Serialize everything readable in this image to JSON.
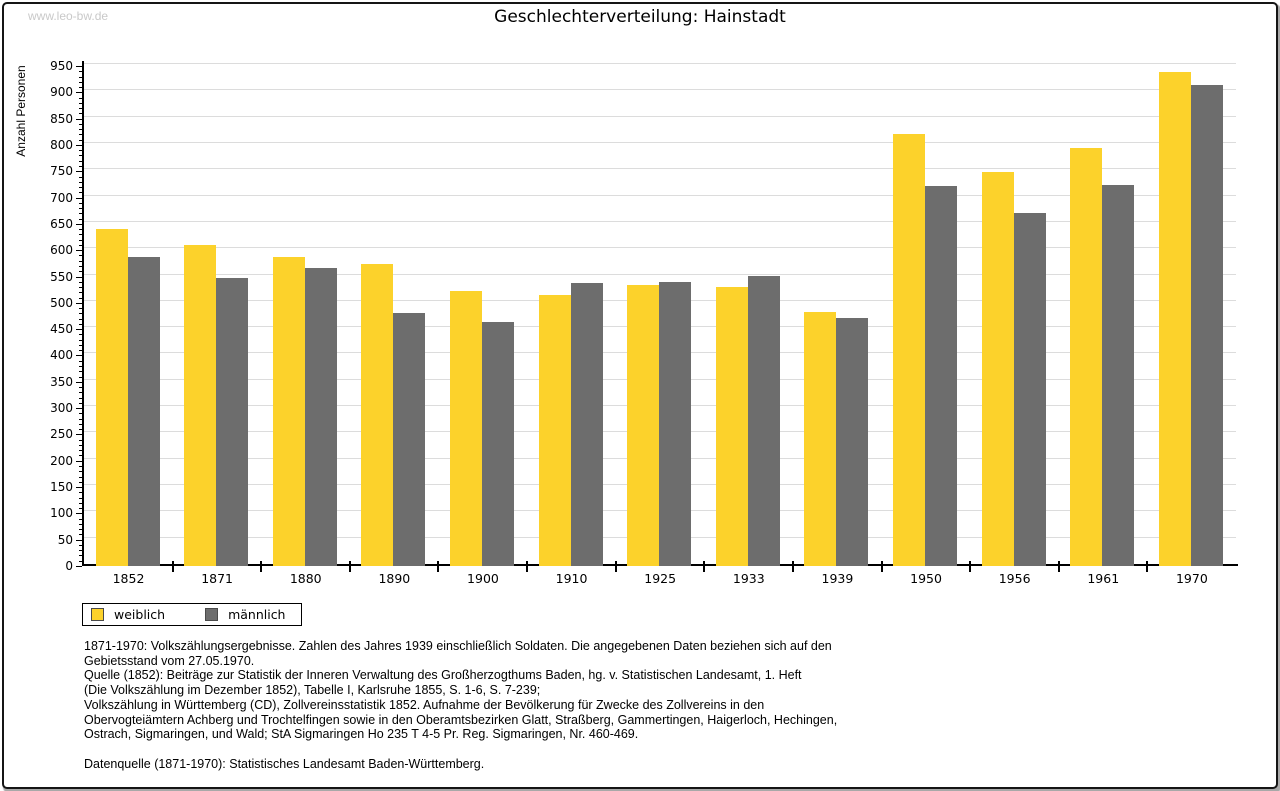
{
  "watermark": "www.leo-bw.de",
  "title": "Geschlechterverteilung: Hainstadt",
  "y_axis": {
    "label": "Anzahl Personen",
    "min": 0,
    "max": 950,
    "major_step": 50,
    "minor_step": 10
  },
  "chart_data": {
    "type": "bar",
    "title": "Geschlechterverteilung: Hainstadt",
    "xlabel": "",
    "ylabel": "Anzahl Personen",
    "ylim": [
      0,
      950
    ],
    "grid": true,
    "legend_position": "bottom-left",
    "categories": [
      "1852",
      "1871",
      "1880",
      "1890",
      "1900",
      "1910",
      "1925",
      "1933",
      "1939",
      "1950",
      "1956",
      "1961",
      "1970"
    ],
    "series": [
      {
        "name": "weiblich",
        "color": "#fcd22b",
        "values": [
          640,
          609,
          588,
          574,
          523,
          514,
          533,
          530,
          483,
          820,
          748,
          795,
          938
        ]
      },
      {
        "name": "männlich",
        "color": "#6d6d6d",
        "values": [
          588,
          548,
          566,
          481,
          464,
          537,
          539,
          551,
          471,
          722,
          670,
          723,
          913
        ]
      }
    ]
  },
  "colors": {
    "gridline": "#dcdcdc",
    "axis": "#000000",
    "watermark": "#c9c9c9",
    "background": "#ffffff"
  },
  "footnotes": {
    "lines": [
      "1871-1970: Volkszählungsergebnisse. Zahlen des Jahres 1939 einschließlich Soldaten. Die angegebenen Daten beziehen sich auf den",
      "Gebietsstand vom 27.05.1970.",
      "Quelle (1852): Beiträge zur Statistik der Inneren Verwaltung des Großherzogthums Baden, hg. v. Statistischen Landesamt, 1. Heft",
      "(Die Volkszählung im Dezember 1852), Tabelle I, Karlsruhe 1855, S. 1-6, S. 7-239;",
      "Volkszählung in Württemberg (CD), Zollvereinsstatistik 1852. Aufnahme der Bevölkerung für Zwecke des Zollvereins in den",
      "Obervogteiämtern Achberg und Trochtelfingen sowie in den Oberamtsbezirken Glatt, Straßberg, Gammertingen, Haigerloch, Hechingen,",
      "Ostrach, Sigmaringen, und Wald; StA Sigmaringen Ho 235 T 4-5 Pr. Reg. Sigmaringen, Nr. 460-469.",
      "",
      "Datenquelle (1871-1970): Statistisches Landesamt Baden-Württemberg."
    ]
  }
}
